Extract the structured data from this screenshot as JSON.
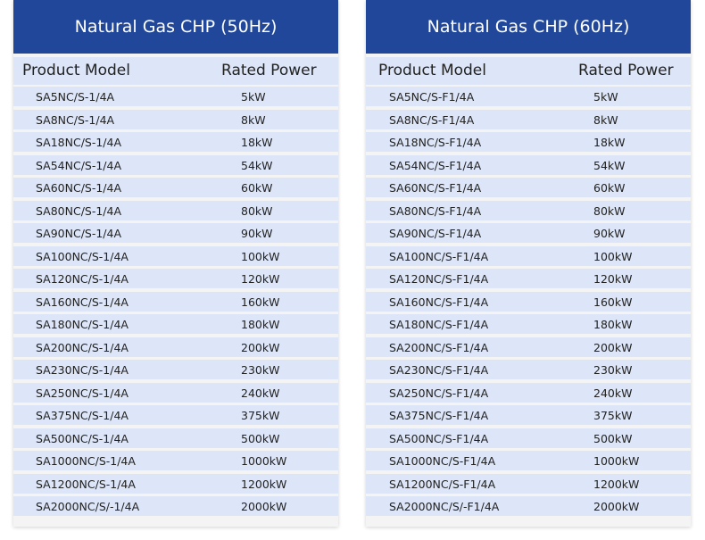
{
  "tables": [
    {
      "title": "Natural Gas CHP (50Hz)",
      "col_model": "Product Model",
      "col_power": "Rated Power",
      "rows": [
        [
          "SA5NC/S-1/4A",
          "5kW"
        ],
        [
          "SA8NC/S-1/4A",
          "8kW"
        ],
        [
          "SA18NC/S-1/4A",
          "18kW"
        ],
        [
          "SA54NC/S-1/4A",
          "54kW"
        ],
        [
          "SA60NC/S-1/4A",
          "60kW"
        ],
        [
          "SA80NC/S-1/4A",
          "80kW"
        ],
        [
          "SA90NC/S-1/4A",
          "90kW"
        ],
        [
          "SA100NC/S-1/4A",
          "100kW"
        ],
        [
          "SA120NC/S-1/4A",
          "120kW"
        ],
        [
          "SA160NC/S-1/4A",
          "160kW"
        ],
        [
          "SA180NC/S-1/4A",
          "180kW"
        ],
        [
          "SA200NC/S-1/4A",
          "200kW"
        ],
        [
          "SA230NC/S-1/4A",
          "230kW"
        ],
        [
          "SA250NC/S-1/4A",
          "240kW"
        ],
        [
          "SA375NC/S-1/4A",
          "375kW"
        ],
        [
          "SA500NC/S-1/4A",
          "500kW"
        ],
        [
          "SA1000NC/S-1/4A",
          "1000kW"
        ],
        [
          "SA1200NC/S-1/4A",
          "1200kW"
        ],
        [
          "SA2000NC/S/-1/4A",
          "2000kW"
        ]
      ]
    },
    {
      "title": "Natural Gas CHP (60Hz)",
      "col_model": "Product Model",
      "col_power": "Rated Power",
      "rows": [
        [
          "SA5NC/S-F1/4A",
          "5kW"
        ],
        [
          "SA8NC/S-F1/4A",
          "8kW"
        ],
        [
          "SA18NC/S-F1/4A",
          "18kW"
        ],
        [
          "SA54NC/S-F1/4A",
          "54kW"
        ],
        [
          "SA60NC/S-F1/4A",
          "60kW"
        ],
        [
          "SA80NC/S-F1/4A",
          "80kW"
        ],
        [
          "SA90NC/S-F1/4A",
          "90kW"
        ],
        [
          "SA100NC/S-F1/4A",
          "100kW"
        ],
        [
          "SA120NC/S-F1/4A",
          "120kW"
        ],
        [
          "SA160NC/S-F1/4A",
          "160kW"
        ],
        [
          "SA180NC/S-F1/4A",
          "180kW"
        ],
        [
          "SA200NC/S-F1/4A",
          "200kW"
        ],
        [
          "SA230NC/S-F1/4A",
          "230kW"
        ],
        [
          "SA250NC/S-F1/4A",
          "240kW"
        ],
        [
          "SA375NC/S-F1/4A",
          "375kW"
        ],
        [
          "SA500NC/S-F1/4A",
          "500kW"
        ],
        [
          "SA1000NC/S-F1/4A",
          "1000kW"
        ],
        [
          "SA1200NC/S-F1/4A",
          "1200kW"
        ],
        [
          "SA2000NC/S/-F1/4A",
          "2000kW"
        ]
      ]
    }
  ],
  "colors": {
    "header": "#21479a",
    "row": "#dde6f8",
    "panel": "#f4f4f4"
  }
}
